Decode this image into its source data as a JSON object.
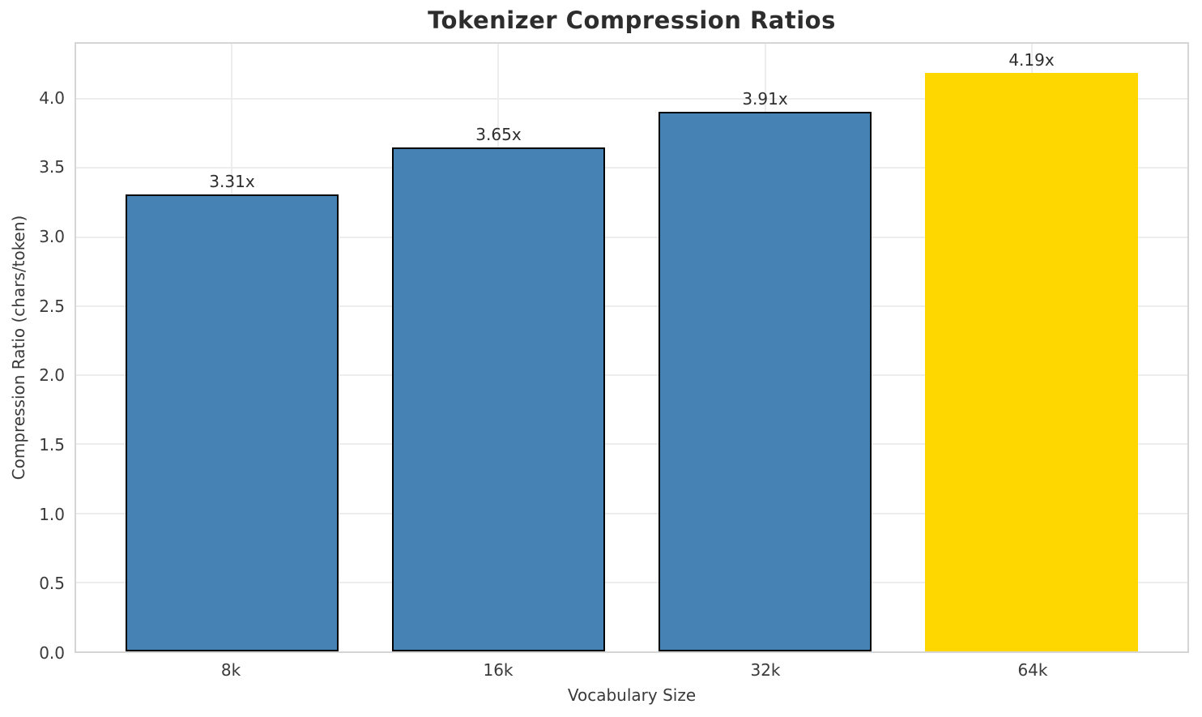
{
  "chart_data": {
    "type": "bar",
    "title": "Tokenizer Compression Ratios",
    "xlabel": "Vocabulary Size",
    "ylabel": "Compression Ratio (chars/token)",
    "categories": [
      "8k",
      "16k",
      "32k",
      "64k"
    ],
    "values": [
      3.31,
      3.65,
      3.91,
      4.19
    ],
    "bar_labels": [
      "3.31x",
      "3.65x",
      "3.91x",
      "4.19x"
    ],
    "series": [
      {
        "name": "compression_ratio",
        "values": [
          3.31,
          3.65,
          3.91,
          4.19
        ],
        "fill_colors": [
          "#4682B4",
          "#4682B4",
          "#4682B4",
          "#FFD700"
        ],
        "edge_colors": [
          "#000000",
          "#000000",
          "#000000",
          "none"
        ]
      }
    ],
    "ytick_labels": [
      "0.0",
      "0.5",
      "1.0",
      "1.5",
      "2.0",
      "2.5",
      "3.0",
      "3.5",
      "4.0"
    ],
    "yticks": [
      0.0,
      0.5,
      1.0,
      1.5,
      2.0,
      2.5,
      3.0,
      3.5,
      4.0
    ],
    "ylim": [
      0,
      4.4
    ],
    "grid": "both",
    "legend": "none",
    "colors": {
      "highlight_bar": "#FFD700",
      "default_bar": "#4682B4",
      "bar_edge": "#000000",
      "grid": "#ededed",
      "spine": "#d5d5d5",
      "title_text": "#2d2d2d",
      "tick_text": "#3a3a3a"
    }
  }
}
